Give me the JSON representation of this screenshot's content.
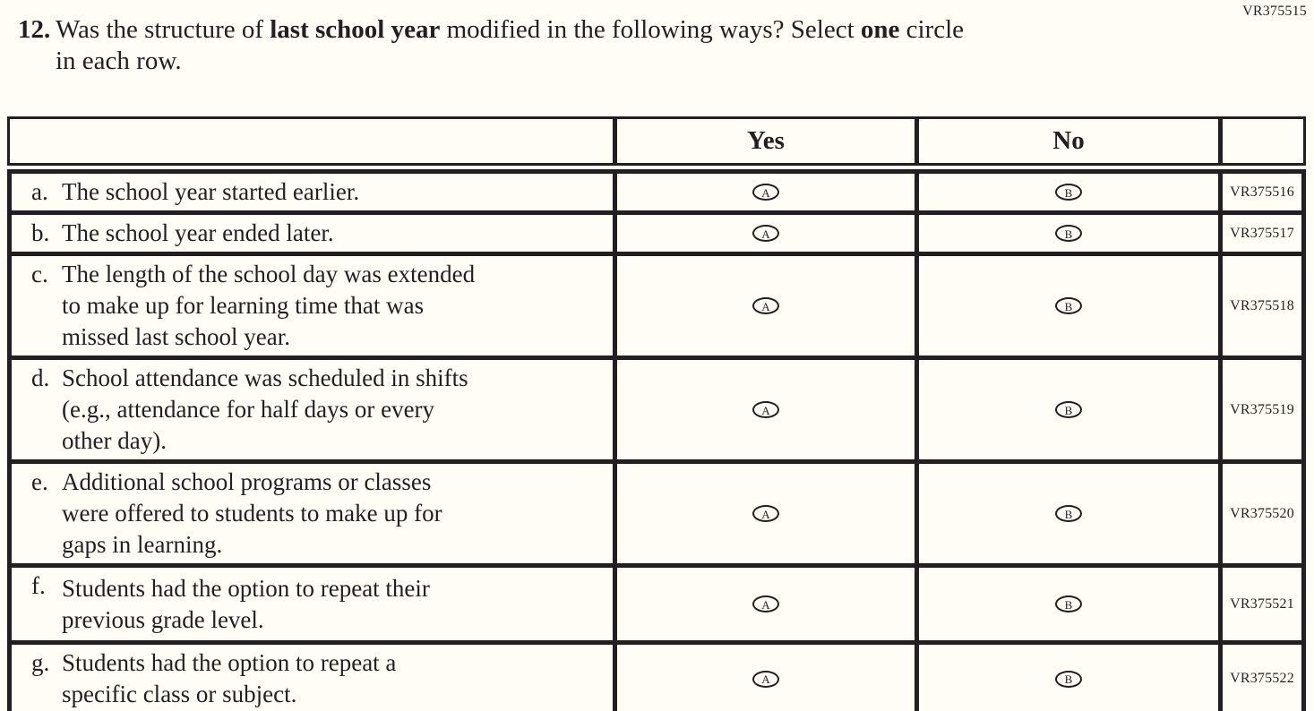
{
  "page_code": "VR375515",
  "question": {
    "number": "12.",
    "line1": {
      "t1": "Was the structure of ",
      "b1": "last school year",
      "t2": " modified in the following ways? Select ",
      "b2": "one",
      "t3": " circle"
    },
    "line2": "in each row."
  },
  "table": {
    "col_yes": "Yes",
    "col_no": "No",
    "bubble_yes": "A",
    "bubble_no": "B",
    "rows": [
      {
        "label": "a.",
        "lines": [
          "The school year started earlier."
        ],
        "code": "VR375516"
      },
      {
        "label": "b.",
        "lines": [
          "The school year ended later."
        ],
        "code": "VR375517"
      },
      {
        "label": "c.",
        "lines": [
          "The length of the school day was extended",
          "to make up for learning time that was",
          "missed last school year."
        ],
        "code": "VR375518"
      },
      {
        "label": "d.",
        "lines": [
          "School attendance was scheduled in shifts",
          "(e.g., attendance for half days or every",
          "other day)."
        ],
        "code": "VR375519"
      },
      {
        "label": "e.",
        "lines": [
          "Additional school programs or classes",
          "were offered to students to make up for",
          "gaps in learning."
        ],
        "code": "VR375520"
      },
      {
        "label": "f.",
        "lines": [
          "Students had the option to repeat their",
          "previous grade level."
        ],
        "code": "VR375521"
      },
      {
        "label": "g.",
        "lines": [
          "Students had the option to repeat a",
          "specific class or subject."
        ],
        "code": "VR375522"
      }
    ]
  },
  "colors": {
    "ink": "#231f20",
    "paper": "#fffdf6"
  }
}
